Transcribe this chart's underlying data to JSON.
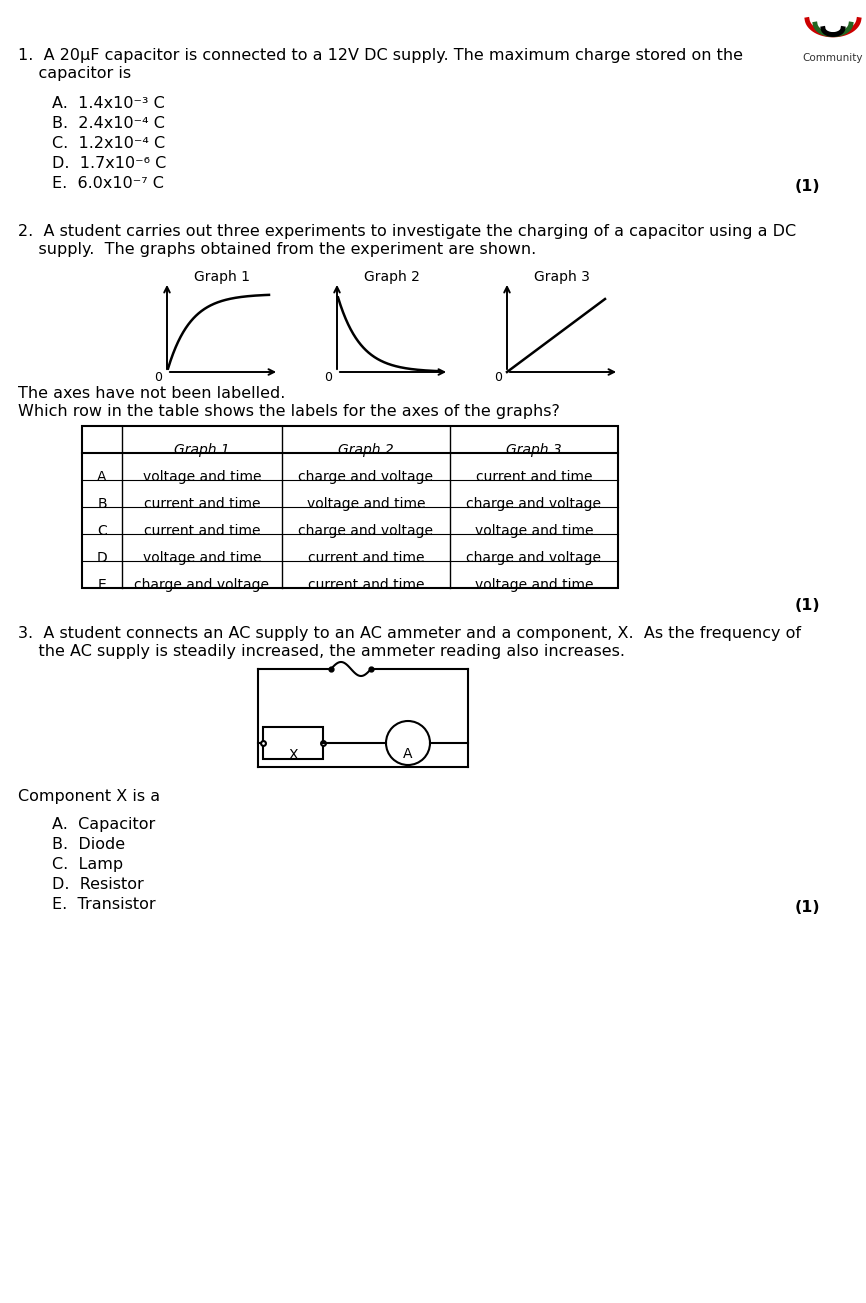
{
  "bg_color": "#ffffff",
  "q1_text_line1": "1.  A 20μF capacitor is connected to a 12V DC supply. The maximum charge stored on the",
  "q1_text_line2": "    capacitor is",
  "q1_options": [
    "A.  1.4x10⁻³ C",
    "B.  2.4x10⁻⁴ C",
    "C.  1.2x10⁻⁴ C",
    "D.  1.7x10⁻⁶ C",
    "E.  6.0x10⁻⁷ C"
  ],
  "q2_text_line1": "2.  A student carries out three experiments to investigate the charging of a capacitor using a DC",
  "q2_text_line2": "    supply.  The graphs obtained from the experiment are shown.",
  "graph_labels": [
    "Graph 1",
    "Graph 2",
    "Graph 3"
  ],
  "axes_note_line1": "The axes have not been labelled.",
  "axes_note_line2": "Which row in the table shows the labels for the axes of the graphs?",
  "table_headers": [
    "",
    "Graph 1",
    "Graph 2",
    "Graph 3"
  ],
  "table_rows": [
    [
      "A",
      "voltage and time",
      "charge and voltage",
      "current and time"
    ],
    [
      "B",
      "current and time",
      "voltage and time",
      "charge and voltage"
    ],
    [
      "C",
      "current and time",
      "charge and voltage",
      "voltage and time"
    ],
    [
      "D",
      "voltage and time",
      "current and time",
      "charge and voltage"
    ],
    [
      "E",
      "charge and voltage",
      "current and time",
      "voltage and time"
    ]
  ],
  "q3_text_line1": "3.  A student connects an AC supply to an AC ammeter and a component, X.  As the frequency of",
  "q3_text_line2": "    the AC supply is steadily increased, the ammeter reading also increases.",
  "component_label": "Component X is a",
  "q3_options": [
    "A.  Capacitor",
    "B.  Diode",
    "C.  Lamp",
    "D.  Resistor",
    "E.  Transistor"
  ],
  "mark_1": "(1)",
  "font_size_body": 11.5,
  "font_size_small": 10
}
